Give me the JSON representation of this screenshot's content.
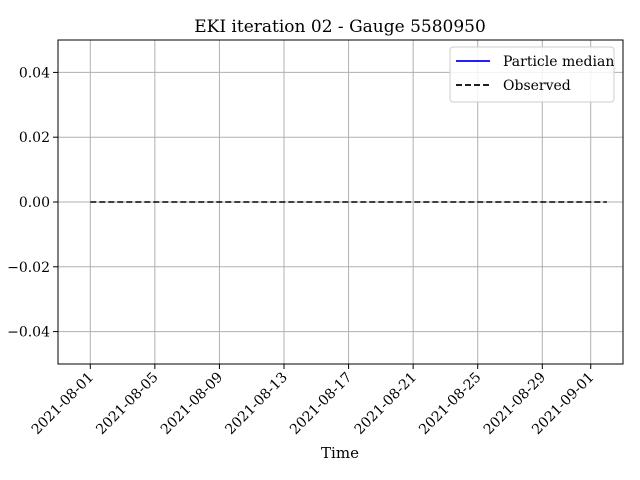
{
  "chart_data": {
    "type": "line",
    "title": "EKI iteration 02 - Gauge 5580950",
    "xlabel": "Time",
    "ylabel": "",
    "xlim": [
      "2021-07-30",
      "2021-09-03"
    ],
    "ylim": [
      -0.05,
      0.05
    ],
    "x_ticks": [
      "2021-08-01",
      "2021-08-05",
      "2021-08-09",
      "2021-08-13",
      "2021-08-17",
      "2021-08-21",
      "2021-08-25",
      "2021-08-29",
      "2021-09-01"
    ],
    "y_ticks": [
      0.04,
      0.02,
      0.0,
      -0.02,
      -0.04
    ],
    "y_tick_labels": [
      "0.04",
      "0.02",
      "0.00",
      "−0.02",
      "−0.04"
    ],
    "grid": true,
    "legend_position": "top-right",
    "series": [
      {
        "name": "Particle median",
        "color": "#0000ff",
        "style": "solid",
        "x": [],
        "y": []
      },
      {
        "name": "Observed",
        "color": "#000000",
        "style": "dashed",
        "x": [
          "2021-08-01",
          "2021-09-02"
        ],
        "y": [
          0.0,
          0.0
        ]
      }
    ]
  }
}
